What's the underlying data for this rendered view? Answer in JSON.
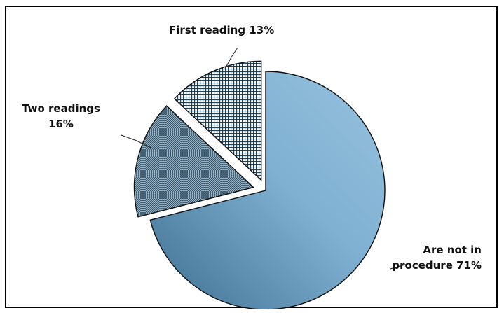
{
  "chart_data": {
    "type": "pie",
    "exploded": true,
    "title": "",
    "slices": [
      {
        "label": "Are not in procedure",
        "value": 71,
        "label_lines": [
          "Are not in",
          "procedure 71%"
        ],
        "pattern": "gradient",
        "colors": [
          "#3e6f91",
          "#8db8d6"
        ]
      },
      {
        "label": "Two readings",
        "value": 16,
        "label_lines": [
          "Two readings",
          "16%"
        ],
        "pattern": "fine-crosshatch",
        "colors": [
          "#2f5670",
          "#ffffff"
        ]
      },
      {
        "label": "First reading",
        "value": 13,
        "label_lines": [
          "First reading 13%"
        ],
        "pattern": "grid",
        "colors": [
          "#1d3d52",
          "#ffffff"
        ]
      }
    ]
  }
}
